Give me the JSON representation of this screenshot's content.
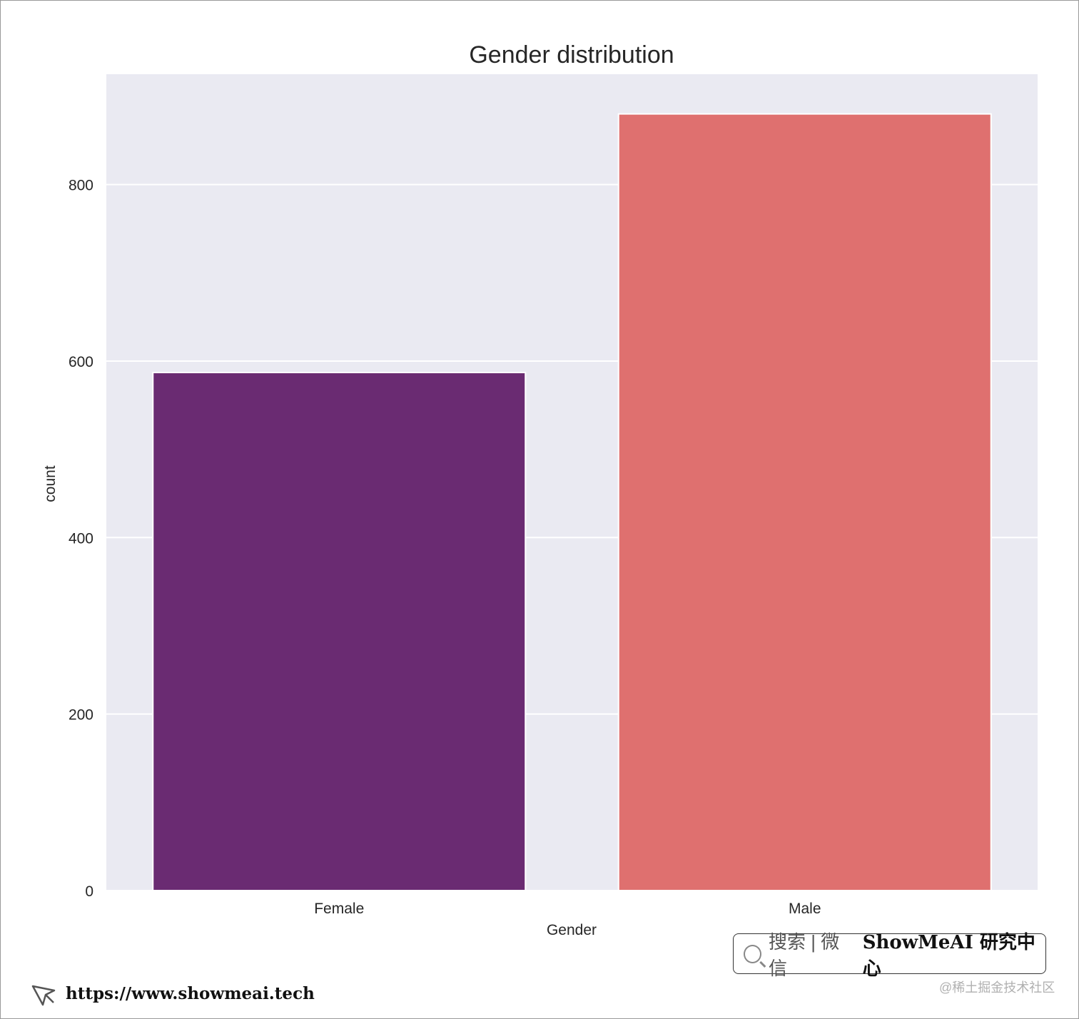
{
  "chart_data": {
    "type": "bar",
    "title": "Gender distribution",
    "xlabel": "Gender",
    "ylabel": "count",
    "categories": [
      "Female",
      "Male"
    ],
    "values": [
      587,
      880
    ],
    "colors": [
      "#6a2b72",
      "#df706f"
    ],
    "ylim": [
      0,
      925
    ],
    "yticks": [
      0,
      200,
      400,
      600,
      800
    ],
    "grid": true,
    "background": "#eaeaf2"
  },
  "watermark": {
    "search_label": "搜索 | 微信",
    "brand": "ShowMeAI 研究中心",
    "url": "https://www.showmeai.tech",
    "credit": "@稀土掘金技术社区"
  }
}
